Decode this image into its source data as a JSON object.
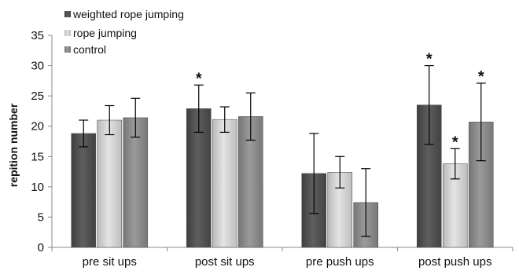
{
  "chart_data": {
    "type": "bar",
    "title": "",
    "xlabel": "",
    "ylabel": "repition number",
    "ylim": [
      0,
      35
    ],
    "yticks": [
      0,
      5,
      10,
      15,
      20,
      25,
      30,
      35
    ],
    "grid": false,
    "legend_position": "top-left",
    "categories": [
      "pre sit ups",
      "post sit ups",
      "pre push ups",
      "post push ups"
    ],
    "series": [
      {
        "name": "weighted rope jumping",
        "color": "#5c5c5c",
        "values": [
          18.8,
          22.9,
          12.2,
          23.5
        ],
        "errors": [
          2.2,
          3.9,
          6.6,
          6.5
        ],
        "significant": [
          false,
          true,
          false,
          true
        ]
      },
      {
        "name": "rope jumping",
        "color": "#cfcfcf",
        "values": [
          21.0,
          21.1,
          12.4,
          13.8
        ],
        "errors": [
          2.4,
          2.1,
          2.6,
          2.5
        ],
        "significant": [
          false,
          false,
          false,
          true
        ]
      },
      {
        "name": "control",
        "color": "#8e8e8e",
        "values": [
          21.4,
          21.6,
          7.4,
          20.7
        ],
        "errors": [
          3.2,
          3.9,
          5.6,
          6.4
        ],
        "significant": [
          false,
          false,
          false,
          true
        ]
      }
    ],
    "significance_marker": "*"
  }
}
